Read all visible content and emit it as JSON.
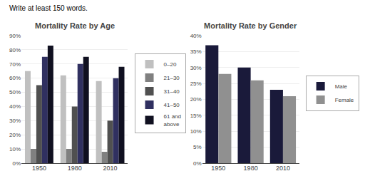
{
  "title": "Write at least 150 words.",
  "chart_data": [
    {
      "type": "bar",
      "title": "Mortality Rate by Age",
      "categories": [
        "1950",
        "1980",
        "2010"
      ],
      "series": [
        {
          "name": "0–20",
          "color": "#c0c0c0",
          "values": [
            65,
            62,
            58
          ]
        },
        {
          "name": "21–30",
          "color": "#808080",
          "values": [
            10,
            10,
            8
          ]
        },
        {
          "name": "31–40",
          "color": "#505050",
          "values": [
            55,
            40,
            30
          ]
        },
        {
          "name": "41–50",
          "color": "#303060",
          "values": [
            75,
            70,
            60
          ]
        },
        {
          "name": "61 and\nabove",
          "color": "#101020",
          "values": [
            83,
            75,
            68
          ]
        }
      ],
      "ylim": [
        0,
        90
      ],
      "yticks": [
        {
          "value": 0,
          "label": "0%"
        },
        {
          "value": 10,
          "label": "10%"
        },
        {
          "value": 20,
          "label": "20%"
        },
        {
          "value": 30,
          "label": "30%"
        },
        {
          "value": 40,
          "label": "40%"
        },
        {
          "value": 50,
          "label": "50%"
        },
        {
          "value": 60,
          "label": "60%"
        },
        {
          "value": 70,
          "label": "70%"
        },
        {
          "value": 80,
          "label": "80%"
        },
        {
          "value": 90,
          "label": "90%"
        }
      ],
      "grid": true,
      "legend": "right"
    },
    {
      "type": "bar",
      "title": "Mortality Rate by Gender",
      "categories": [
        "1950",
        "1980",
        "2010"
      ],
      "series": [
        {
          "name": "Male",
          "color": "#1a1a3a",
          "values": [
            37,
            30,
            23
          ]
        },
        {
          "name": "Female",
          "color": "#909090",
          "values": [
            28,
            26,
            21
          ]
        }
      ],
      "ylim": [
        0,
        40
      ],
      "yticks": [
        {
          "value": 0,
          "label": "0%"
        },
        {
          "value": 5,
          "label": "5%"
        },
        {
          "value": 10,
          "label": "10%"
        },
        {
          "value": 15,
          "label": "15%"
        },
        {
          "value": 20,
          "label": "20%"
        },
        {
          "value": 25,
          "label": "25%"
        },
        {
          "value": 30,
          "label": "30%"
        },
        {
          "value": 35,
          "label": "35%"
        },
        {
          "value": 40,
          "label": "40%"
        }
      ],
      "grid": true,
      "legend": "right"
    }
  ]
}
